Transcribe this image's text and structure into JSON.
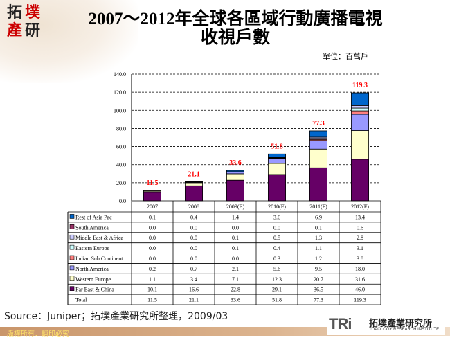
{
  "logo": {
    "text": "拓墣產研",
    "colors": {
      "red": "#cc0000",
      "dark": "#222222"
    }
  },
  "title": {
    "line1": "2007～2012年全球各區域行動廣播電視",
    "line2": "收視戶數"
  },
  "unit": "單位：百萬戶",
  "chart_data": {
    "type": "bar",
    "stacked": true,
    "title": "2007～2012年全球各區域行動廣播電視收視戶數",
    "ylabel": "",
    "xlabel": "",
    "ylim": [
      0,
      140
    ],
    "yticks": [
      "0.0",
      "20.0",
      "40.0",
      "60.0",
      "80.0",
      "100.0",
      "120.0",
      "140.0"
    ],
    "grid": "dashed horizontal",
    "legend": "table-below",
    "categories": [
      "2007",
      "2008",
      "2009(E)",
      "2010(F)",
      "2011(F)",
      "2012(F)"
    ],
    "series": [
      {
        "name": "Far East & China",
        "color": "#660066",
        "values": [
          10.1,
          16.6,
          22.8,
          29.1,
          36.5,
          46.0
        ]
      },
      {
        "name": "Western Europe",
        "color": "#FFFFCC",
        "values": [
          1.1,
          3.4,
          7.1,
          12.3,
          20.7,
          31.6
        ]
      },
      {
        "name": "North America",
        "color": "#9999FF",
        "values": [
          0.2,
          0.7,
          2.1,
          5.6,
          9.5,
          18.0
        ]
      },
      {
        "name": "Indian Sub Continent",
        "color": "#FF8080",
        "values": [
          0.0,
          0.0,
          0.0,
          0.3,
          1.2,
          3.8
        ]
      },
      {
        "name": "Eastern Europe",
        "color": "#CCFFFF",
        "values": [
          0.0,
          0.0,
          0.1,
          0.4,
          1.1,
          3.1
        ]
      },
      {
        "name": "Middle East & Africa",
        "color": "#CCCCFF",
        "values": [
          0.0,
          0.0,
          0.1,
          0.5,
          1.3,
          2.8
        ]
      },
      {
        "name": "South America",
        "color": "#993366",
        "values": [
          0.0,
          0.0,
          0.0,
          0.0,
          0.1,
          0.6
        ]
      },
      {
        "name": "Rest of Asia Pac",
        "color": "#0066CC",
        "values": [
          0.1,
          0.4,
          1.4,
          3.6,
          6.9,
          13.4
        ]
      }
    ],
    "table_row_order": [
      "Rest of Asia Pac",
      "South America",
      "Middle East & Africa",
      "Eastern Europe",
      "Indian Sub Continent",
      "North America",
      "Western Europe",
      "Far East & China"
    ],
    "totals_label": "Total",
    "totals": [
      "11.5",
      "21.1",
      "33.6",
      "51.8",
      "77.3",
      "119.3"
    ],
    "total_label_color": "#FF0000"
  },
  "source": "Source：Juniper；拓墣產業研究所整理，2009/03",
  "footer": {
    "copyright": "版權所有．翻印必究",
    "brand_mark": "TRi",
    "brand_cn": "拓墣產業研究所",
    "brand_en": "TOPOLOGY RESEARCH INSTITUTE"
  }
}
